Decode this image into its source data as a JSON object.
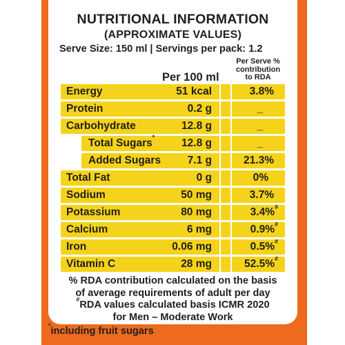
{
  "label": {
    "title": "NUTRITIONAL INFORMATION",
    "subtitle": "(APPROXIMATE VALUES)",
    "serve_info": "Serve Size: 150 ml | Servings per pack: 1.2",
    "col_per100": "Per 100 ml",
    "col_rda_1": "Per Serve %",
    "col_rda_2": "contribution",
    "col_rda_3": "to RDA",
    "rows": [
      {
        "name": "Energy",
        "value": "51 kcal",
        "rda": "3.8%"
      },
      {
        "name": "Protein",
        "value": "0.2 g",
        "rda": "_"
      },
      {
        "name": "Carbohydrate",
        "value": "12.8 g",
        "rda": "_"
      },
      {
        "name": "Total Sugars",
        "value": "12.8 g",
        "rda": "_"
      },
      {
        "name": "Added Sugars",
        "value": "7.1 g",
        "rda": "21.3%"
      },
      {
        "name": "Total Fat",
        "value": "0 g",
        "rda": "0%"
      },
      {
        "name": "Sodium",
        "value": "50 mg",
        "rda": "3.7%"
      },
      {
        "name": "Potassium",
        "value": "80 mg",
        "rda": "3.4%"
      },
      {
        "name": "Calcium",
        "value": "6 mg",
        "rda": "0.9%"
      },
      {
        "name": "Iron",
        "value": "0.06 mg",
        "rda": "0.5%"
      },
      {
        "name": "Vitamin C",
        "value": "28 mg",
        "rda": "52.5%"
      }
    ],
    "asterisk": "*",
    "hash": "#",
    "footnote_1": "% RDA contribution calculated on the basis",
    "footnote_2": "of average requirements of adult per day",
    "footnote_3": "RDA values calculated basis ICMR 2020",
    "footnote_4": "for Men – Moderate Work",
    "bottom_note": "including fruit sugars"
  }
}
